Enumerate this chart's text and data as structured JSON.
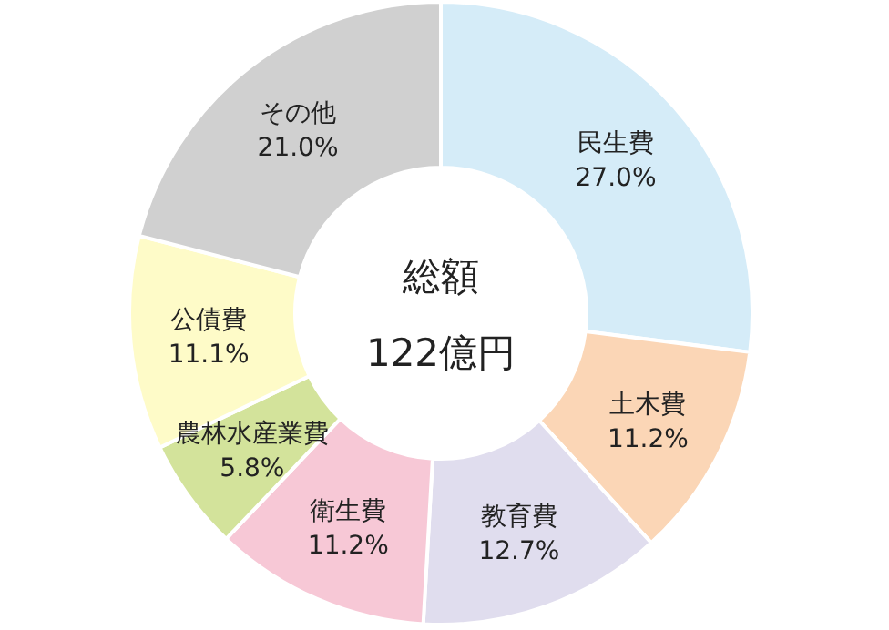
{
  "chart_data": {
    "type": "donut",
    "categories": [
      "民生費",
      "土木費",
      "教育費",
      "衛生費",
      "農林水産業費",
      "公債費",
      "その他"
    ],
    "values": [
      27.0,
      11.2,
      12.7,
      11.2,
      5.8,
      11.1,
      21.0
    ],
    "value_labels": [
      "27.0%",
      "11.2%",
      "12.7%",
      "11.2%",
      "5.8%",
      "11.1%",
      "21.0%"
    ],
    "colors": [
      "#d5ecf8",
      "#fbd6b6",
      "#e0ddee",
      "#f7c8d6",
      "#d3e39b",
      "#fefbc8",
      "#d0d0d0"
    ],
    "annotations": [
      "総額",
      "122億円"
    ]
  }
}
